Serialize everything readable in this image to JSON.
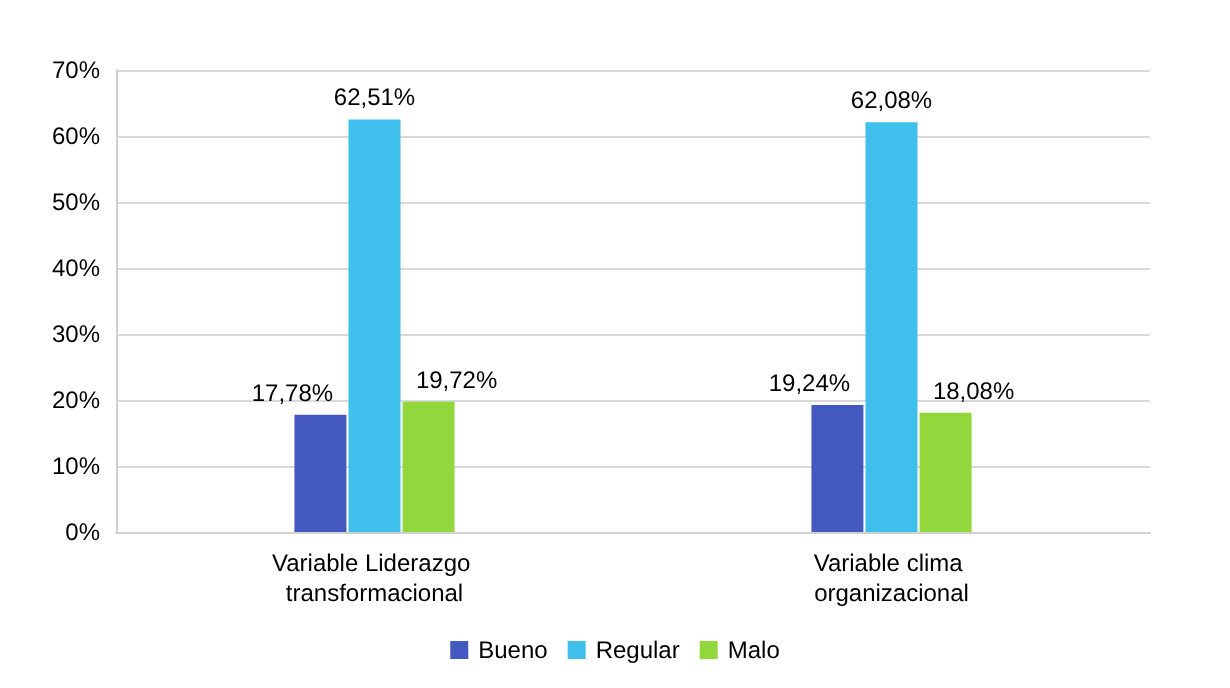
{
  "chart_data": {
    "type": "bar",
    "categories": [
      "Variable Liderazgo transformacional",
      "Variable clima organizacional"
    ],
    "series": [
      {
        "name": "Bueno",
        "color": "#4459c0",
        "values": [
          17.78,
          19.24
        ],
        "value_labels": [
          "17,78%",
          "19,24%"
        ]
      },
      {
        "name": "Regular",
        "color": "#3ebfec",
        "values": [
          62.51,
          62.08
        ],
        "value_labels": [
          "62,51%",
          "62,08%"
        ]
      },
      {
        "name": "Malo",
        "color": "#92d83c",
        "values": [
          19.72,
          18.08
        ],
        "value_labels": [
          "19,72%",
          "18,08%"
        ]
      }
    ],
    "ylim": [
      0,
      70
    ],
    "yticks": [
      {
        "value": 0,
        "label": "0%"
      },
      {
        "value": 10,
        "label": "10%"
      },
      {
        "value": 20,
        "label": "20%"
      },
      {
        "value": 30,
        "label": "30%"
      },
      {
        "value": 40,
        "label": "40%"
      },
      {
        "value": 50,
        "label": "50%"
      },
      {
        "value": 60,
        "label": "60%"
      },
      {
        "value": 70,
        "label": "70%"
      }
    ],
    "grid": "y",
    "legend": "bottom"
  }
}
